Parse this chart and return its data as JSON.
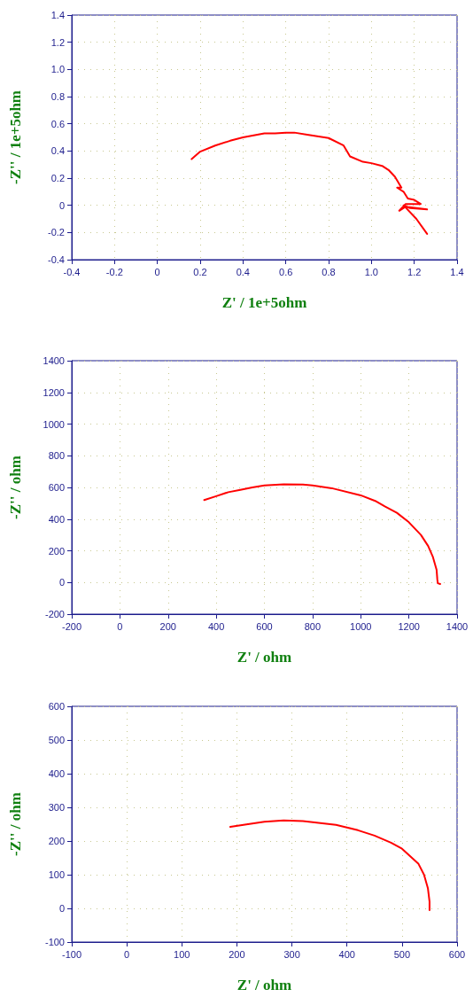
{
  "chart_data": [
    {
      "type": "line",
      "xlabel": "Z' / 1e+5ohm",
      "ylabel": "-Z'' / 1e+5ohm",
      "xlim": [
        -0.4,
        1.4
      ],
      "ylim": [
        -0.4,
        1.4
      ],
      "xticks": [
        -0.4,
        -0.2,
        0,
        0.2,
        0.4,
        0.6,
        0.8,
        {
          "value": 1,
          "label": "1.0"
        },
        1.2,
        1.4
      ],
      "yticks": [
        -0.4,
        -0.2,
        0,
        0.2,
        0.4,
        0.6,
        0.8,
        {
          "value": 1,
          "label": "1.0"
        },
        1.2,
        1.4
      ],
      "grid": true,
      "marker": "none",
      "line_style": "solid",
      "series": [
        {
          "color": "#ff0000",
          "x": [
            0.16,
            0.2,
            0.27,
            0.34,
            0.4,
            0.5,
            0.55,
            0.6,
            0.64,
            0.7,
            0.8,
            0.87,
            0.9,
            0.96,
            1.0,
            1.05,
            1.08,
            1.11,
            1.14,
            1.12,
            1.15,
            1.17,
            1.2,
            1.23,
            1.16,
            1.13,
            1.16,
            1.26,
            1.18,
            1.15,
            1.21,
            1.26
          ],
          "values": [
            0.34,
            0.395,
            0.44,
            0.475,
            0.5,
            0.53,
            0.53,
            0.535,
            0.535,
            0.52,
            0.495,
            0.44,
            0.36,
            0.32,
            0.31,
            0.29,
            0.26,
            0.21,
            0.13,
            0.13,
            0.1,
            0.05,
            0.04,
            0.01,
            0.01,
            -0.04,
            -0.01,
            -0.03,
            -0.02,
            0.0,
            -0.1,
            -0.21
          ]
        }
      ]
    },
    {
      "type": "line",
      "xlabel": "Z' / ohm",
      "ylabel": "-Z'' / ohm",
      "xlim": [
        -200,
        1400
      ],
      "ylim": [
        -200,
        1400
      ],
      "xticks": [
        -200,
        0,
        200,
        400,
        600,
        800,
        1000,
        1200,
        1400
      ],
      "yticks": [
        -200,
        0,
        200,
        400,
        600,
        800,
        1000,
        1200,
        1400
      ],
      "grid": true,
      "marker": "none",
      "line_style": "solid",
      "series": [
        {
          "color": "#ff0000",
          "x": [
            350,
            400,
            450,
            500,
            550,
            600,
            680,
            760,
            800,
            880,
            1000,
            1060,
            1100,
            1150,
            1200,
            1250,
            1280,
            1300,
            1315,
            1318,
            1320,
            1330
          ],
          "values": [
            520,
            545,
            570,
            585,
            600,
            612,
            620,
            618,
            612,
            595,
            550,
            515,
            480,
            440,
            380,
            300,
            230,
            160,
            80,
            20,
            -5,
            -10
          ]
        }
      ]
    },
    {
      "type": "line",
      "xlabel": "Z' / ohm",
      "ylabel": "-Z'' / ohm",
      "xlim": [
        -100,
        600
      ],
      "ylim": [
        -100,
        600
      ],
      "xticks": [
        -100,
        0,
        100,
        200,
        300,
        400,
        500,
        600
      ],
      "yticks": [
        -100,
        0,
        100,
        200,
        300,
        400,
        500,
        600
      ],
      "grid": true,
      "marker": "none",
      "line_style": "solid",
      "series": [
        {
          "color": "#ff0000",
          "x": [
            188,
            220,
            250,
            285,
            320,
            380,
            420,
            450,
            480,
            500,
            530,
            540,
            547,
            550,
            550
          ],
          "values": [
            242,
            250,
            257,
            261,
            259,
            248,
            232,
            216,
            195,
            177,
            132,
            100,
            60,
            20,
            -5
          ]
        }
      ]
    }
  ]
}
